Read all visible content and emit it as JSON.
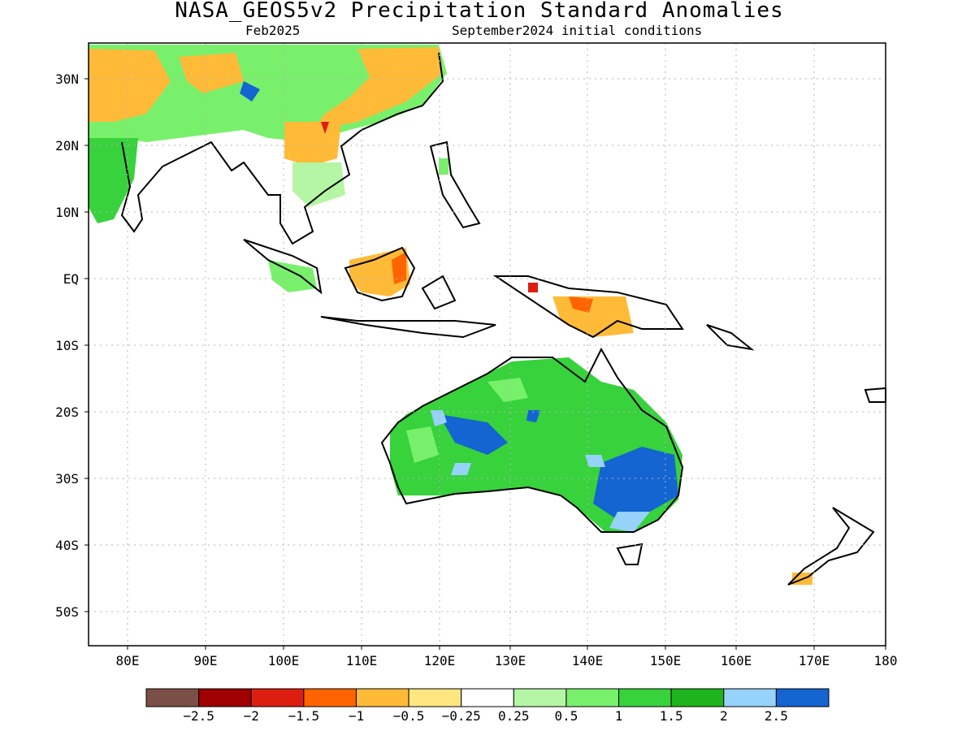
{
  "title": "NASA_GEOS5v2 Precipitation Standard Anomalies",
  "valid_month": "Feb2025",
  "init_conditions": "September2024 initial conditions",
  "lat_labels": [
    "30N",
    "20N",
    "10N",
    "EQ",
    "10S",
    "20S",
    "30S",
    "40S",
    "50S"
  ],
  "lon_labels": [
    "80E",
    "90E",
    "100E",
    "110E",
    "120E",
    "130E",
    "140E",
    "150E",
    "160E",
    "170E",
    "180"
  ],
  "colorbar": {
    "colors": [
      "#7b4f45",
      "#a00000",
      "#dc1e10",
      "#ff6400",
      "#ffbb38",
      "#ffe680",
      "#ffffff",
      "#b4f6a3",
      "#78f06c",
      "#37d23c",
      "#1eb41e",
      "#96d2fa",
      "#1464d2"
    ],
    "labels": [
      "−2.5",
      "−2",
      "−1.5",
      "−1",
      "−0.5",
      "−0.25",
      "0.25",
      "0.5",
      "1",
      "1.5",
      "2",
      "2.5"
    ]
  }
}
